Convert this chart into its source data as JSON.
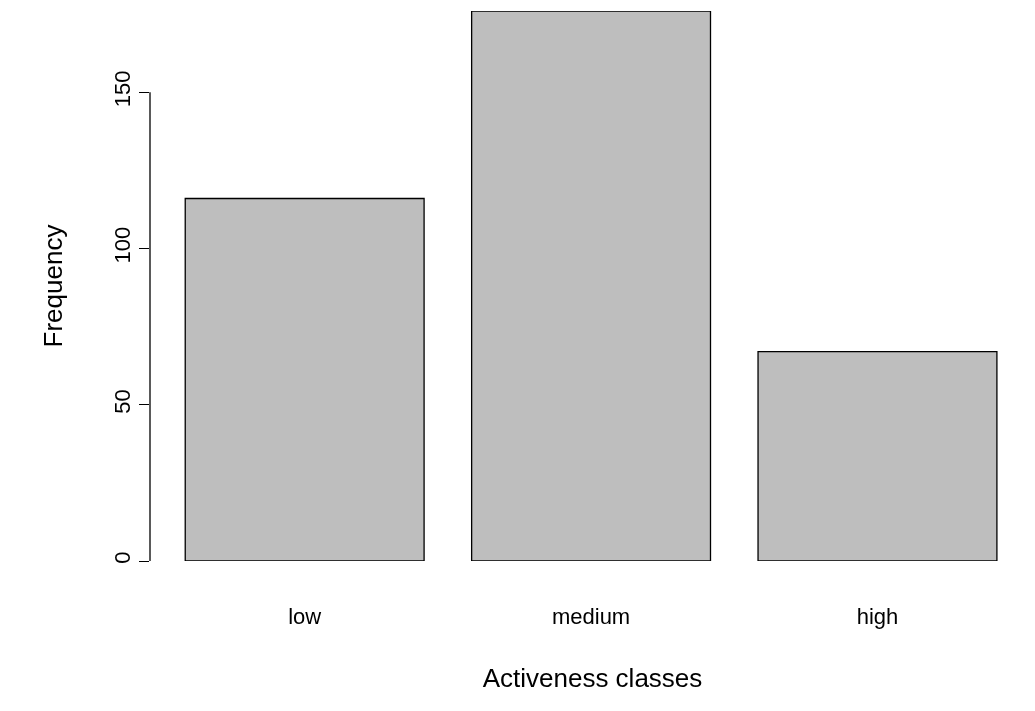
{
  "chart_data": {
    "type": "bar",
    "xlabel": "Activeness classes",
    "ylabel": "Frequency",
    "categories": [
      "low",
      "medium",
      "high"
    ],
    "values": [
      116,
      176,
      67
    ],
    "color": "#bebebe",
    "ylim": [
      0,
      176
    ],
    "yticks": [
      0,
      50,
      100,
      150
    ]
  }
}
